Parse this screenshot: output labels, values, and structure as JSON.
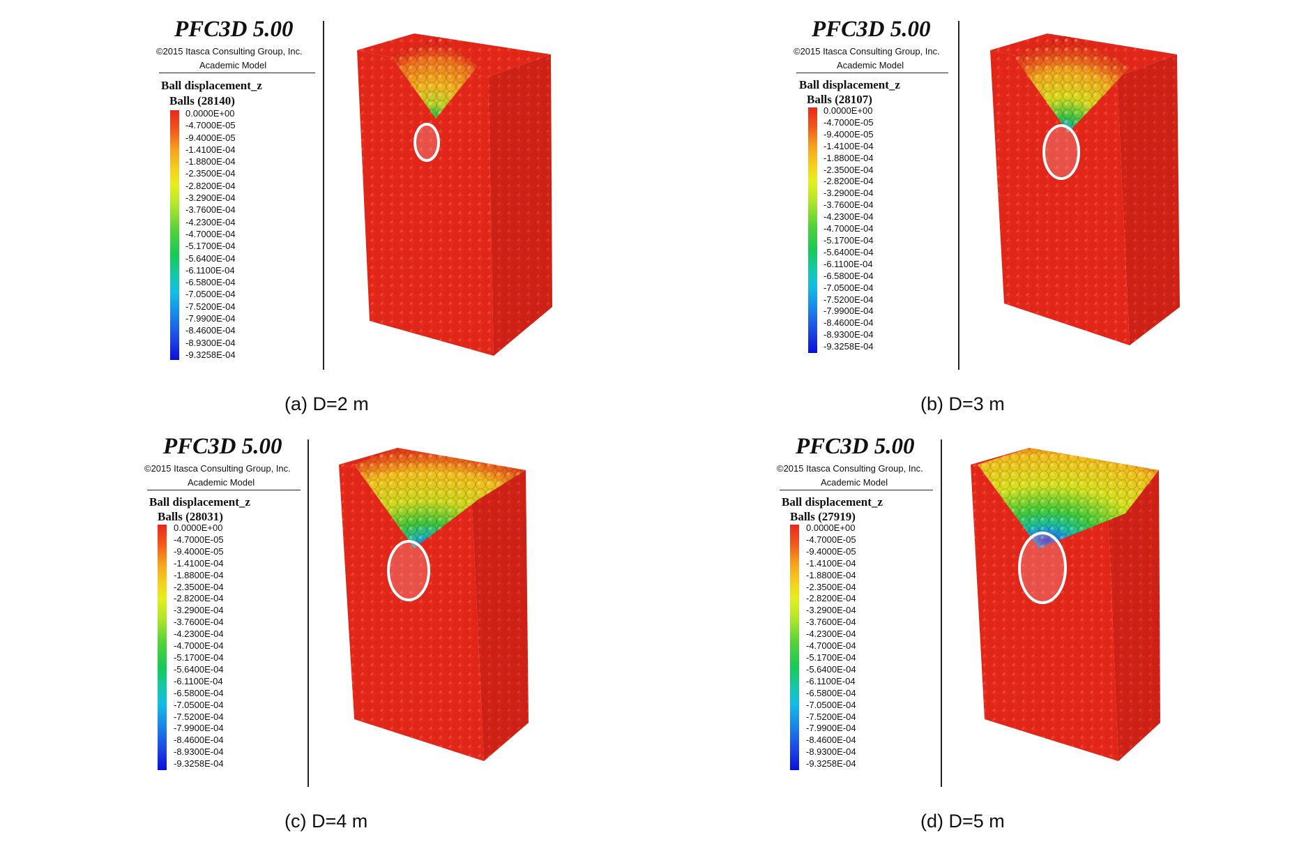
{
  "header": {
    "title": "PFC3D 5.00",
    "copyright": "©2015 Itasca Consulting Group, Inc.",
    "model": "Academic Model",
    "quantity": "Ball displacement_z"
  },
  "legend_ticks": [
    "0.0000E+00",
    "-4.7000E-05",
    "-9.4000E-05",
    "-1.4100E-04",
    "-1.8800E-04",
    "-2.3500E-04",
    "-2.8200E-04",
    "-3.2900E-04",
    "-3.7600E-04",
    "-4.2300E-04",
    "-4.7000E-04",
    "-5.1700E-04",
    "-5.6400E-04",
    "-6.1100E-04",
    "-6.5800E-04",
    "-7.0500E-04",
    "-7.5200E-04",
    "-7.9900E-04",
    "-8.4600E-04",
    "-8.9300E-04",
    "-9.3258E-04"
  ],
  "panels": [
    {
      "balls": "Balls (28140)",
      "caption": "(a)  D=2  m",
      "cavity_size": 0.55,
      "disturbance": 0.45
    },
    {
      "balls": "Balls (28107)",
      "caption": "(b)  D=3  m",
      "cavity_size": 0.75,
      "disturbance": 0.65
    },
    {
      "balls": "Balls (28031)",
      "caption": "(c)  D=4  m",
      "cavity_size": 0.9,
      "disturbance": 0.85
    },
    {
      "balls": "Balls (27919)",
      "caption": "(d)  D=5  m",
      "cavity_size": 1.0,
      "disturbance": 1.0
    }
  ],
  "colors": {
    "ball_red": "#e8281c",
    "highlight_circle": "#ffffff"
  }
}
